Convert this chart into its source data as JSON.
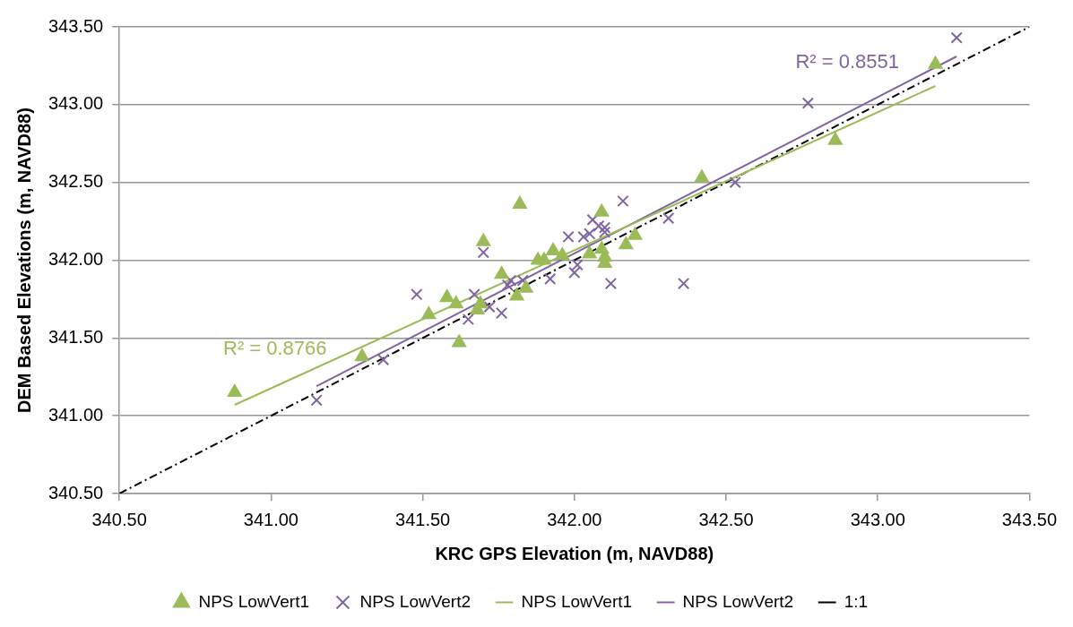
{
  "chart_data": {
    "type": "scatter",
    "xlabel": "KRC GPS Elevation (m, NAVD88)",
    "ylabel": "DEM Based Elevations (m, NAVD88)",
    "xlim": [
      340.5,
      343.5
    ],
    "xticks": [
      {
        "value": 340.5,
        "label": "340.50"
      },
      {
        "value": 341,
        "label": "341.00"
      },
      {
        "value": 341.5,
        "label": "341.50"
      },
      {
        "value": 342,
        "label": "342.00"
      },
      {
        "value": 342.5,
        "label": "342.50"
      },
      {
        "value": 343,
        "label": "343.00"
      },
      {
        "value": 343.5,
        "label": "343.50"
      }
    ],
    "ylim": [
      340.5,
      343.5
    ],
    "yticks": [
      {
        "value": 340.5,
        "label": "340.50"
      },
      {
        "value": 341,
        "label": "341.00"
      },
      {
        "value": 341.5,
        "label": "341.50"
      },
      {
        "value": 342,
        "label": "342.00"
      },
      {
        "value": 342.5,
        "label": "342.50"
      },
      {
        "value": 343,
        "label": "343.00"
      },
      {
        "value": 343.5,
        "label": "343.50"
      }
    ],
    "grid": "y",
    "legend": "bottom",
    "series": [
      {
        "name": "NPS LowVert1",
        "type": "scatter",
        "marker": "triangle",
        "color": "#9bbb59",
        "x": [
          340.88,
          341.3,
          341.52,
          341.58,
          341.61,
          341.62,
          341.68,
          341.69,
          341.7,
          341.76,
          341.81,
          341.82,
          341.84,
          341.88,
          341.9,
          341.93,
          341.96,
          342.05,
          342.09,
          342.09,
          342.1,
          342.1,
          342.17,
          342.2,
          342.42,
          342.86,
          343.19
        ],
        "values": [
          341.15,
          341.38,
          341.65,
          341.76,
          341.72,
          341.47,
          341.68,
          341.72,
          342.12,
          341.91,
          341.77,
          342.36,
          341.82,
          342.0,
          342.0,
          342.06,
          342.03,
          342.04,
          342.31,
          342.07,
          342.02,
          341.98,
          342.1,
          342.16,
          342.53,
          342.77,
          343.26
        ]
      },
      {
        "name": "NPS LowVert2",
        "type": "scatter",
        "marker": "cross",
        "color": "#8064a2",
        "x": [
          341.15,
          341.37,
          341.48,
          341.65,
          341.67,
          341.7,
          341.72,
          341.76,
          341.78,
          341.79,
          341.83,
          341.92,
          341.98,
          342.0,
          342.01,
          342.03,
          342.05,
          342.06,
          342.08,
          342.1,
          342.1,
          342.12,
          342.16,
          342.31,
          342.36,
          342.53,
          342.77,
          343.26
        ],
        "values": [
          341.1,
          341.36,
          341.78,
          341.62,
          341.78,
          342.05,
          341.7,
          341.66,
          341.84,
          341.87,
          341.87,
          341.88,
          342.15,
          341.92,
          341.97,
          342.15,
          342.17,
          342.26,
          342.22,
          342.21,
          342.18,
          341.85,
          342.38,
          342.27,
          341.85,
          342.5,
          343.01,
          343.43
        ]
      },
      {
        "name": "NPS LowVert1",
        "type": "line",
        "marker": "none",
        "line_style": "solid",
        "color": "#9bbb59",
        "x": [
          340.88,
          343.19
        ],
        "values": [
          341.07,
          343.12
        ]
      },
      {
        "name": "NPS LowVert2",
        "type": "line",
        "marker": "none",
        "line_style": "solid",
        "color": "#8064a2",
        "x": [
          341.15,
          343.26
        ],
        "values": [
          341.19,
          343.31
        ]
      },
      {
        "name": "1:1",
        "type": "line",
        "marker": "none",
        "line_style": "dashed",
        "color": "#000000",
        "x": [
          340.5,
          343.5
        ],
        "values": [
          340.5,
          343.5
        ]
      }
    ],
    "annotations": [
      "R² = 0.8766",
      "R² = 0.8551"
    ]
  }
}
